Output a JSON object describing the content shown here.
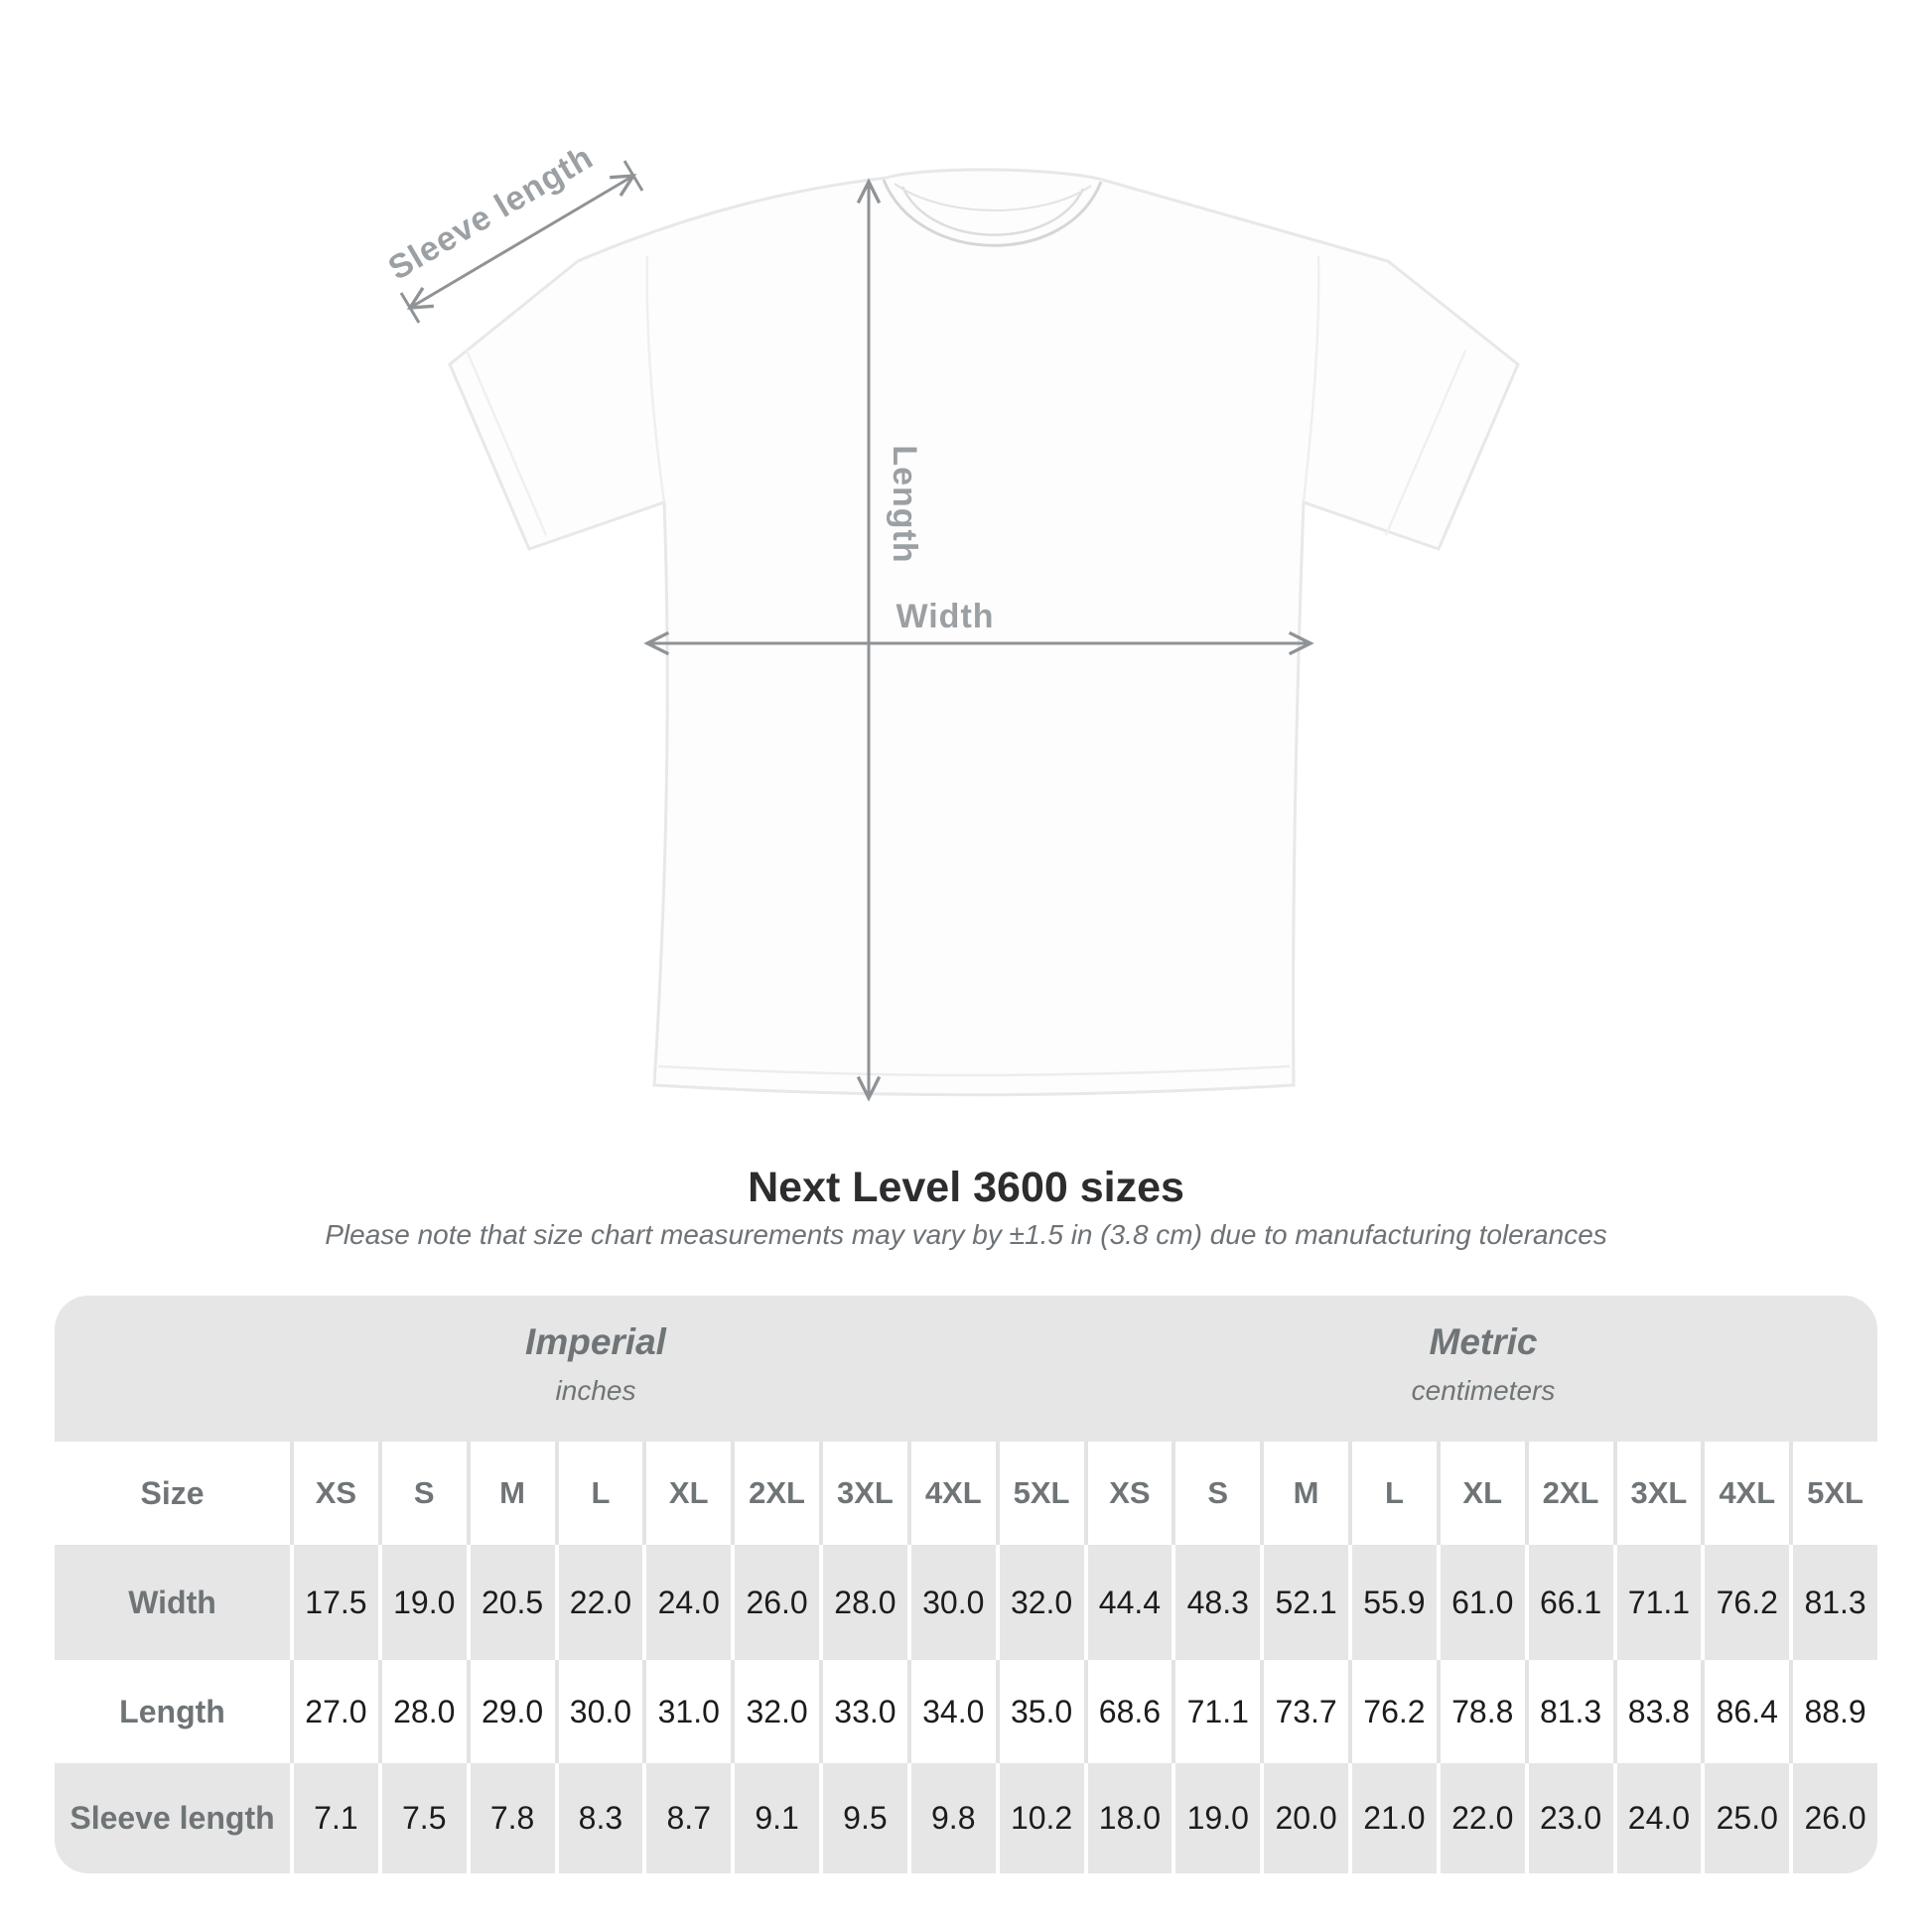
{
  "title": "Next Level 3600 sizes",
  "subtitle": "Please note that size chart measurements may vary by ±1.5 in (3.8 cm) due to manufacturing tolerances",
  "annotations": {
    "sleeve_label": "Sleeve length",
    "length_label": "Length",
    "width_label": "Width"
  },
  "size_chart": {
    "size_label": "Size",
    "sections": [
      {
        "name": "Imperial",
        "unit": "inches"
      },
      {
        "name": "Metric",
        "unit": "centimeters"
      }
    ],
    "sizes": [
      "XS",
      "S",
      "M",
      "L",
      "XL",
      "2XL",
      "3XL",
      "4XL",
      "5XL"
    ],
    "rows": [
      {
        "key": "width",
        "label": "Width",
        "imperial": [
          "17.5",
          "19.0",
          "20.5",
          "22.0",
          "24.0",
          "26.0",
          "28.0",
          "30.0",
          "32.0"
        ],
        "metric": [
          "44.4",
          "48.3",
          "52.1",
          "55.9",
          "61.0",
          "66.1",
          "71.1",
          "76.2",
          "81.3"
        ]
      },
      {
        "key": "length",
        "label": "Length",
        "imperial": [
          "27.0",
          "28.0",
          "29.0",
          "30.0",
          "31.0",
          "32.0",
          "33.0",
          "34.0",
          "35.0"
        ],
        "metric": [
          "68.6",
          "71.1",
          "73.7",
          "76.2",
          "78.8",
          "81.3",
          "83.8",
          "86.4",
          "88.9"
        ]
      },
      {
        "key": "sleeve",
        "label": "Sleeve length",
        "imperial": [
          "7.1",
          "7.5",
          "7.8",
          "8.3",
          "8.7",
          "9.1",
          "9.5",
          "9.8",
          "10.2"
        ],
        "metric": [
          "18.0",
          "19.0",
          "20.0",
          "21.0",
          "22.0",
          "23.0",
          "24.0",
          "25.0",
          "26.0"
        ]
      }
    ]
  },
  "colors": {
    "table_gray": "#e6e6e6",
    "separator_gray": "#e3e3e3",
    "label_text": "#6f7477",
    "value_text": "#1c1c1e",
    "annotation_line": "#8f9396",
    "annotation_text": "#9ba0a4",
    "title_text": "#2d2d2f"
  }
}
